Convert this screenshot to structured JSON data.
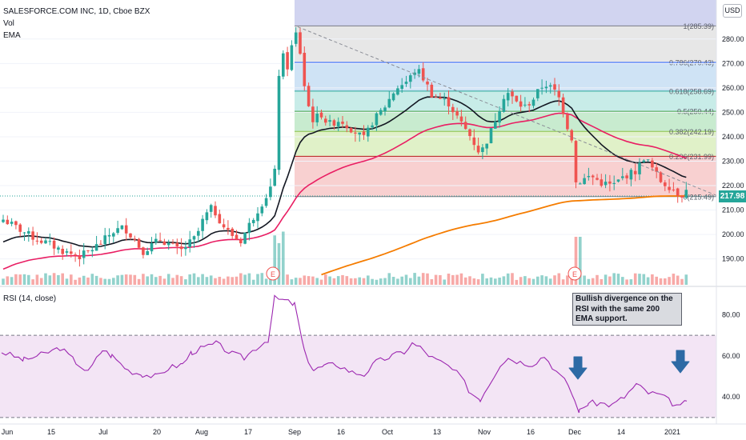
{
  "chart_data": [
    {
      "type": "candlestick",
      "title": "SALESFORCE.COM INC, 1D, Cboe BZX",
      "indicators": [
        "Vol",
        "EMA"
      ],
      "currency": "USD",
      "last_price": "217.98",
      "ylim": [
        183,
        295
      ],
      "y_ticks": [
        "190.00",
        "200.00",
        "210.00",
        "220.00",
        "230.00",
        "240.00",
        "250.00",
        "260.00",
        "270.00",
        "280.00"
      ],
      "x_ticks": [
        "Jun",
        "15",
        "Jul",
        "20",
        "Aug",
        "17",
        "Sep",
        "16",
        "Oct",
        "13",
        "Nov",
        "16",
        "Dec",
        "14",
        "2021"
      ],
      "fib_levels": [
        {
          "ratio": "0",
          "value": 215.49,
          "label": "0(215.49)",
          "fill": "#f4cccc",
          "line": "#787b86"
        },
        {
          "ratio": "0.236",
          "value": 231.99,
          "label": "0.236(231.99)",
          "fill": "#f8d0d0",
          "line": "#b71c1c"
        },
        {
          "ratio": "0.382",
          "value": 242.19,
          "label": "0.382(242.19)",
          "fill": "#e0f1c8",
          "line": "#8bc34a"
        },
        {
          "ratio": "0.5",
          "value": 250.44,
          "label": "0.5(250.44)",
          "fill": "#c8ebcf",
          "line": "#43a047"
        },
        {
          "ratio": "0.618",
          "value": 258.69,
          "label": "0.618(258.69)",
          "fill": "#c8ece8",
          "line": "#26a69a"
        },
        {
          "ratio": "0.786",
          "value": 270.43,
          "label": "0.786(270.43)",
          "fill": "#cfe3f5",
          "line": "#2962ff"
        },
        {
          "ratio": "1",
          "value": 285.39,
          "label": "1(285.39)",
          "fill": "#e7e7e7",
          "line": "#787b86"
        }
      ],
      "earnings_markers": [
        "E",
        "E"
      ]
    },
    {
      "type": "line",
      "title": "RSI (14, close)",
      "ylim": [
        28,
        95
      ],
      "y_ticks": [
        "40.00",
        "60.00",
        "80.00"
      ],
      "band": [
        30,
        70
      ],
      "annotation": "Bullish divergence on the RSI with the same 200 EMA support."
    }
  ]
}
